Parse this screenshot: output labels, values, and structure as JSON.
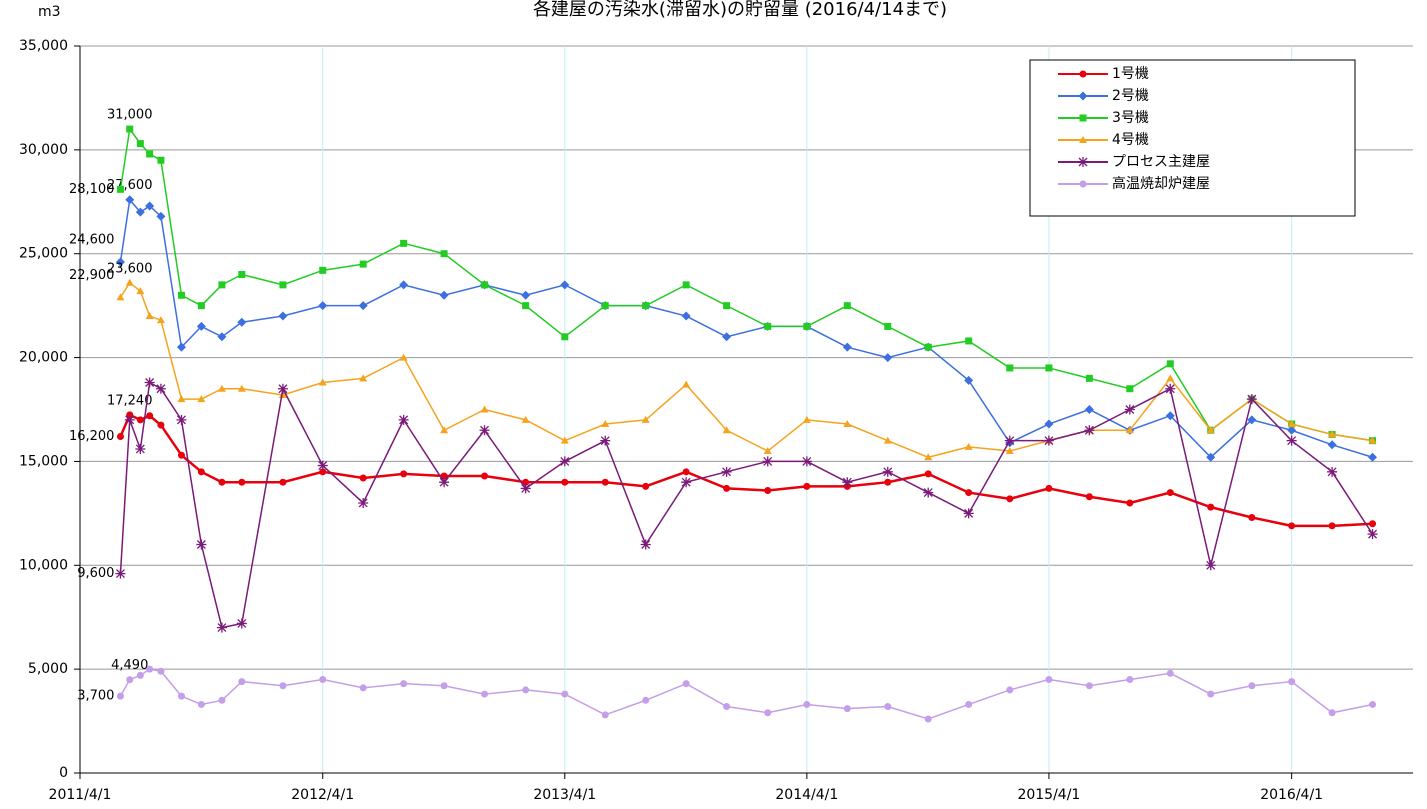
{
  "chart_data": {
    "type": "line",
    "title": "各建屋の汚染水(滞留水)の貯留量 (2016/4/14まで)",
    "y_label": "m3",
    "x": [
      "2011/6/1",
      "2011/6/15",
      "2011/7/1",
      "2011/7/15",
      "2011/8/1",
      "2011/9/1",
      "2011/10/1",
      "2011/11/1",
      "2011/12/1",
      "2012/2/1",
      "2012/4/1",
      "2012/6/1",
      "2012/8/1",
      "2012/10/1",
      "2012/12/1",
      "2013/2/1",
      "2013/4/1",
      "2013/6/1",
      "2013/8/1",
      "2013/10/1",
      "2013/12/1",
      "2014/2/1",
      "2014/4/1",
      "2014/6/1",
      "2014/8/1",
      "2014/10/1",
      "2014/12/1",
      "2015/2/1",
      "2015/4/1",
      "2015/6/1",
      "2015/8/1",
      "2015/10/1",
      "2015/12/1",
      "2016/2/1",
      "2016/4/1",
      "2016/6/1",
      "2016/8/1"
    ],
    "xlim": [
      "2011/4/1",
      "2016/10/1"
    ],
    "xticks": [
      "2011/4/1",
      "2012/4/1",
      "2013/4/1",
      "2014/4/1",
      "2015/4/1",
      "2016/4/1"
    ],
    "ylim": [
      0,
      35000
    ],
    "yticks": [
      0,
      {
        "value": 5000,
        "label": "5,000"
      },
      {
        "value": 10000,
        "label": "10,000"
      },
      {
        "value": 15000,
        "label": "15,000"
      },
      {
        "value": 20000,
        "label": "20,000"
      },
      {
        "value": 25000,
        "label": "25,000"
      },
      {
        "value": 30000,
        "label": "30,000"
      },
      {
        "value": 35000,
        "label": "35,000"
      }
    ],
    "grid": true,
    "legend": "upper right",
    "series": [
      {
        "name": "1号機",
        "color": "#e8000b",
        "marker": "circle",
        "values": [
          16200,
          17240,
          17000,
          17200,
          16750,
          15300,
          14500,
          14000,
          14000,
          14000,
          14500,
          14200,
          14400,
          14300,
          14300,
          14000,
          14000,
          14000,
          13800,
          14500,
          13700,
          13600,
          13800,
          13800,
          14000,
          14400,
          13500,
          13200,
          13700,
          13300,
          13000,
          13500,
          12800,
          12300,
          11900,
          11900,
          12000
        ],
        "value_labels": [
          "16,200",
          "17,240",
          null,
          null,
          null,
          null,
          null,
          null,
          null,
          null,
          null,
          null,
          null,
          null,
          null,
          null,
          null,
          null,
          null,
          null,
          null,
          null,
          null,
          null,
          null,
          null,
          null,
          null,
          null,
          null,
          null,
          null,
          null,
          null,
          null,
          null,
          null
        ]
      },
      {
        "name": "2号機",
        "color": "#3c6fe0",
        "marker": "diamond",
        "values": [
          24600,
          27600,
          27000,
          27300,
          26800,
          20500,
          21500,
          21000,
          21700,
          22000,
          22500,
          22500,
          23500,
          23000,
          23500,
          23000,
          23500,
          22500,
          22500,
          22000,
          21000,
          21500,
          21500,
          20500,
          20000,
          20500,
          18900,
          15900,
          16800,
          17500,
          16500,
          17200,
          15200,
          17000,
          16500,
          15800,
          15200
        ],
        "value_labels": [
          "24,600",
          "27,600",
          null,
          null,
          null,
          null,
          null,
          null,
          null,
          null,
          null,
          null,
          null,
          null,
          null,
          null,
          null,
          null,
          null,
          null,
          null,
          null,
          null,
          null,
          null,
          null,
          null,
          null,
          null,
          null,
          null,
          null,
          null,
          null,
          null,
          null,
          null
        ]
      },
      {
        "name": "3号機",
        "color": "#22cc22",
        "marker": "square",
        "values": [
          28100,
          31000,
          30300,
          29800,
          29500,
          23000,
          22500,
          23500,
          24000,
          23500,
          24200,
          24500,
          25500,
          25000,
          23500,
          22500,
          21000,
          22500,
          22500,
          23500,
          22500,
          21500,
          21500,
          22500,
          21500,
          20500,
          20800,
          19500,
          19500,
          19000,
          18500,
          19700,
          16500,
          18000,
          16800,
          16300,
          16000
        ],
        "value_labels": [
          "28,100",
          "31,000",
          null,
          null,
          null,
          null,
          null,
          null,
          null,
          null,
          null,
          null,
          null,
          null,
          null,
          null,
          null,
          null,
          null,
          null,
          null,
          null,
          null,
          null,
          null,
          null,
          null,
          null,
          null,
          null,
          null,
          null,
          null,
          null,
          null,
          null,
          null
        ]
      },
      {
        "name": "4号機",
        "color": "#f5a31f",
        "marker": "triangle",
        "values": [
          22900,
          23600,
          23200,
          22000,
          21800,
          18000,
          18000,
          18500,
          18500,
          18200,
          18800,
          19000,
          20000,
          16500,
          17500,
          17000,
          16000,
          16800,
          17000,
          18700,
          16500,
          15500,
          17000,
          16800,
          16000,
          15200,
          15700,
          15500,
          16000,
          16500,
          16500,
          19000,
          16500,
          18000,
          16800,
          16300,
          16000
        ],
        "value_labels": [
          "22,900",
          "23,600",
          null,
          null,
          null,
          null,
          null,
          null,
          null,
          null,
          null,
          null,
          null,
          null,
          null,
          null,
          null,
          null,
          null,
          null,
          null,
          null,
          null,
          null,
          null,
          null,
          null,
          null,
          null,
          null,
          null,
          null,
          null,
          null,
          null,
          null,
          null
        ]
      },
      {
        "name": "プロセス主建屋",
        "color": "#7a1a7a",
        "marker": "star",
        "values": [
          9600,
          17000,
          15600,
          18800,
          18500,
          17000,
          11000,
          7000,
          7200,
          18500,
          14800,
          13000,
          17000,
          14000,
          16500,
          13700,
          15000,
          16000,
          11000,
          14000,
          14500,
          15000,
          15000,
          14000,
          14500,
          13500,
          12500,
          16000,
          16000,
          16500,
          17500,
          18500,
          10000,
          18000,
          16000,
          14500,
          11500
        ],
        "value_labels": [
          "9,600",
          null,
          null,
          null,
          null,
          null,
          null,
          null,
          null,
          null,
          null,
          null,
          null,
          null,
          null,
          null,
          null,
          null,
          null,
          null,
          null,
          null,
          null,
          null,
          null,
          null,
          null,
          null,
          null,
          null,
          null,
          null,
          null,
          null,
          null,
          null,
          null
        ]
      },
      {
        "name": "高温焼却炉建屋",
        "color": "#c49ee8",
        "marker": "circle",
        "values": [
          3700,
          4490,
          4700,
          5000,
          4900,
          3700,
          3300,
          3500,
          4400,
          4200,
          4500,
          4100,
          4300,
          4200,
          3800,
          4000,
          3800,
          2800,
          3500,
          4300,
          3200,
          2900,
          3300,
          3100,
          3200,
          2600,
          3300,
          4000,
          4500,
          4200,
          4500,
          4800,
          3800,
          4200,
          4400,
          2900,
          3300
        ],
        "value_labels": [
          "3,700",
          "4,490",
          null,
          null,
          null,
          null,
          null,
          null,
          null,
          null,
          null,
          null,
          null,
          null,
          null,
          null,
          null,
          null,
          null,
          null,
          null,
          null,
          null,
          null,
          null,
          null,
          null,
          null,
          null,
          null,
          null,
          null,
          null,
          null,
          null,
          null,
          null
        ]
      }
    ]
  }
}
